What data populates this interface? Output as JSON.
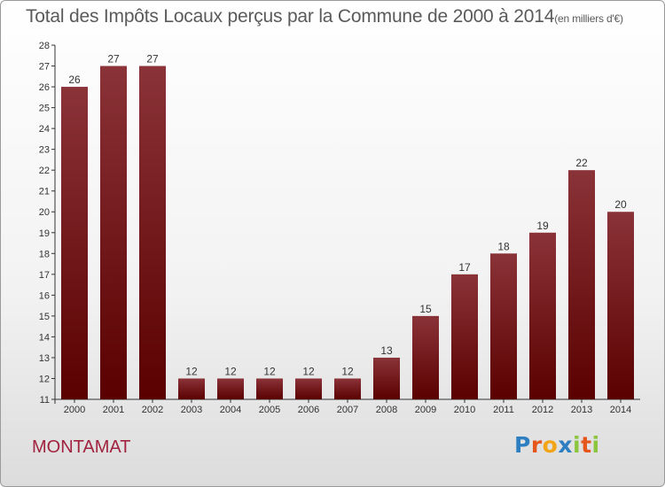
{
  "title": {
    "main": "Total des Impôts Locaux perçus par la Commune de 2000 à 2014",
    "unit": "(en milliers d'€)"
  },
  "place_name": "MONTAMAT",
  "brand": {
    "letters": [
      "P",
      "r",
      "o",
      "x",
      "i",
      "t",
      "i"
    ],
    "colors": [
      "#2e7fc1",
      "#e4561b",
      "#f2a516",
      "#2e7fc1",
      "#8cc63f",
      "#e4561b",
      "#8cc63f"
    ]
  },
  "colors": {
    "bar_top": "#8a3338",
    "bar_bottom": "#5a0000",
    "axis": "#333333",
    "grid": "#cccccc"
  },
  "chart_data": {
    "type": "bar",
    "categories": [
      "2000",
      "2001",
      "2002",
      "2003",
      "2004",
      "2005",
      "2006",
      "2007",
      "2008",
      "2009",
      "2010",
      "2011",
      "2012",
      "2013",
      "2014"
    ],
    "values": [
      26,
      27,
      27,
      12,
      12,
      12,
      12,
      12,
      13,
      15,
      17,
      18,
      19,
      22,
      20
    ],
    "ylim": [
      11,
      28
    ],
    "yticks": [
      11,
      12,
      13,
      14,
      15,
      16,
      17,
      18,
      19,
      20,
      21,
      22,
      23,
      24,
      25,
      26,
      27,
      28
    ],
    "grid": false,
    "legend": "none"
  }
}
